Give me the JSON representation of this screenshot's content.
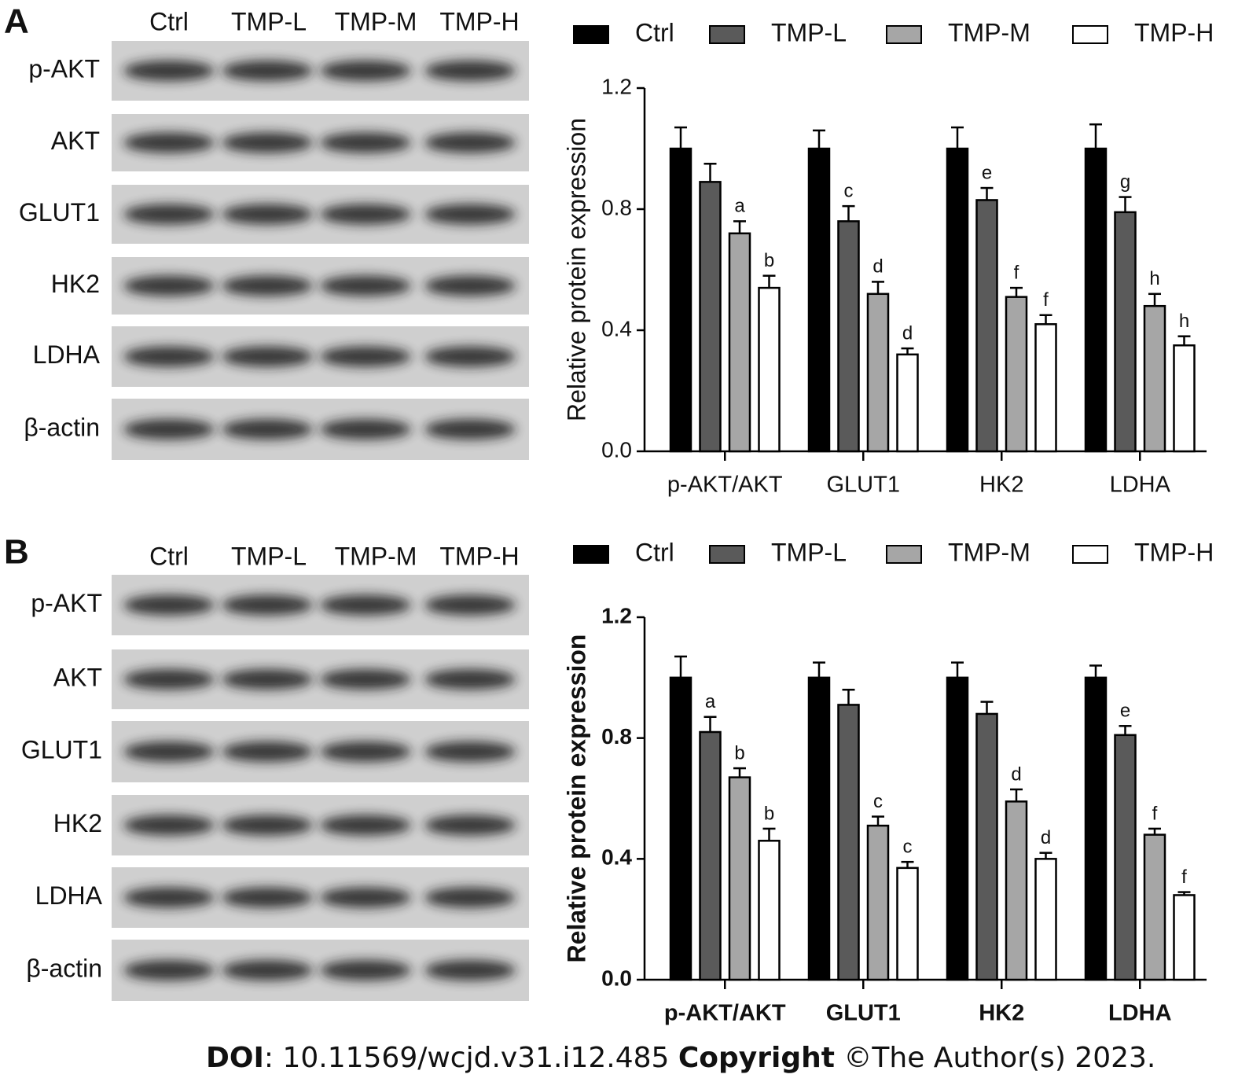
{
  "panels": [
    {
      "letter": "A",
      "blot": {
        "lanes": [
          "Ctrl",
          "TMP-L",
          "TMP-M",
          "TMP-H"
        ],
        "rows": [
          "p-AKT",
          "AKT",
          "GLUT1",
          "HK2",
          "LDHA",
          "β-actin"
        ]
      }
    },
    {
      "letter": "B",
      "blot": {
        "lanes": [
          "Ctrl",
          "TMP-L",
          "TMP-M",
          "TMP-H"
        ],
        "rows": [
          "p-AKT",
          "AKT",
          "GLUT1",
          "HK2",
          "LDHA",
          "β-actin"
        ]
      }
    }
  ],
  "chart_data": [
    {
      "type": "bar",
      "ylabel": "Relative protein expression",
      "bold": false,
      "categories": [
        "p-AKT/AKT",
        "GLUT1",
        "HK2",
        "LDHA"
      ],
      "ylim": [
        0,
        1.2
      ],
      "yticks": [
        {
          "value": 0,
          "label": "0.0"
        },
        0.4,
        0.8,
        1.2
      ],
      "series": [
        {
          "name": "Ctrl",
          "color": "#000000",
          "values": [
            1.0,
            1.0,
            1.0,
            1.0
          ],
          "errors": [
            0.07,
            0.06,
            0.07,
            0.08
          ],
          "annotations": [
            null,
            null,
            null,
            null
          ]
        },
        {
          "name": "TMP-L",
          "color": "#5a5a5a",
          "values": [
            0.89,
            0.76,
            0.83,
            0.79
          ],
          "errors": [
            0.06,
            0.05,
            0.04,
            0.05
          ],
          "annotations": [
            null,
            "c",
            "e",
            "g"
          ]
        },
        {
          "name": "TMP-M",
          "color": "#a6a6a6",
          "values": [
            0.72,
            0.52,
            0.51,
            0.48
          ],
          "errors": [
            0.04,
            0.04,
            0.03,
            0.04
          ],
          "annotations": [
            "a",
            "d",
            "f",
            "h"
          ]
        },
        {
          "name": "TMP-H",
          "color": "#ffffff",
          "values": [
            0.54,
            0.32,
            0.42,
            0.35
          ],
          "errors": [
            0.04,
            0.02,
            0.03,
            0.03
          ],
          "annotations": [
            "b",
            "d",
            "f",
            "h"
          ]
        }
      ]
    },
    {
      "type": "bar",
      "ylabel": "Relative protein expression",
      "bold": true,
      "categories": [
        "p-AKT/AKT",
        "GLUT1",
        "HK2",
        "LDHA"
      ],
      "ylim": [
        0,
        1.2
      ],
      "yticks": [
        {
          "value": 0,
          "label": "0.0"
        },
        0.4,
        0.8,
        1.2
      ],
      "series": [
        {
          "name": "Ctrl",
          "color": "#000000",
          "values": [
            1.0,
            1.0,
            1.0,
            1.0
          ],
          "errors": [
            0.07,
            0.05,
            0.05,
            0.04
          ],
          "annotations": [
            null,
            null,
            null,
            null
          ]
        },
        {
          "name": "TMP-L",
          "color": "#5a5a5a",
          "values": [
            0.82,
            0.91,
            0.88,
            0.81
          ],
          "errors": [
            0.05,
            0.05,
            0.04,
            0.03
          ],
          "annotations": [
            "a",
            null,
            null,
            "e"
          ]
        },
        {
          "name": "TMP-M",
          "color": "#a6a6a6",
          "values": [
            0.67,
            0.51,
            0.59,
            0.48
          ],
          "errors": [
            0.03,
            0.03,
            0.04,
            0.02
          ],
          "annotations": [
            "b",
            "c",
            "d",
            "f"
          ]
        },
        {
          "name": "TMP-H",
          "color": "#ffffff",
          "values": [
            0.46,
            0.37,
            0.4,
            0.28
          ],
          "errors": [
            0.04,
            0.02,
            0.02,
            0.01
          ],
          "annotations": [
            "b",
            "c",
            "d",
            "f"
          ]
        }
      ]
    }
  ],
  "footer": {
    "doi_label": "DOI",
    "doi": ": 10.11569/wcjd.v31.i12.485 ",
    "copyright_label": "Copyright",
    "copyright": " ©The Author(s) 2023."
  }
}
